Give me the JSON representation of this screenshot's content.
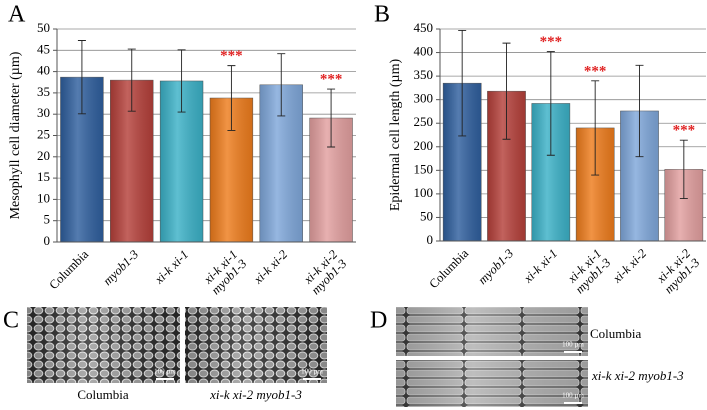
{
  "chart_data": [
    {
      "type": "bar",
      "label": "A",
      "ylabel": "Mesophyll cell diameter (µm)",
      "categories": [
        "Columbia",
        "myob1-3",
        "xi-k xi-1",
        "xi-k xi-1 myob1-3",
        "xi-k xi-2",
        "xi-k xi-2 myob1-3"
      ],
      "values": [
        38.7,
        38.0,
        37.8,
        33.8,
        36.9,
        29.1
      ],
      "errors": [
        8.6,
        7.3,
        7.3,
        7.6,
        7.3,
        6.8
      ],
      "significance_labels": [
        null,
        null,
        null,
        "***",
        null,
        "***"
      ],
      "colors": [
        "#2f5f9e",
        "#b5403a",
        "#3bb1c7",
        "#ee7c1c",
        "#7fa7da",
        "#e29f9f"
      ],
      "ylim": [
        0,
        50
      ],
      "yticks": [
        0,
        5,
        10,
        15,
        20,
        25,
        30,
        35,
        40,
        45,
        50
      ],
      "grid": true
    },
    {
      "type": "bar",
      "label": "B",
      "ylabel": "Epidermal cell length (µm)",
      "categories": [
        "Columbia",
        "myob1-3",
        "xi-k xi-1",
        "xi-k xi-1 myob1-3",
        "xi-k xi-2",
        "xi-k xi-2 myob1-3"
      ],
      "values": [
        335,
        318,
        292,
        240,
        276,
        152
      ],
      "errors": [
        112,
        102,
        110,
        100,
        97,
        62
      ],
      "significance_labels": [
        null,
        null,
        "***",
        "***",
        null,
        "***"
      ],
      "colors": [
        "#2f5f9e",
        "#b5403a",
        "#3bb1c7",
        "#ee7c1c",
        "#7fa7da",
        "#e29f9f"
      ],
      "ylim": [
        0,
        450
      ],
      "yticks": [
        0,
        50,
        100,
        150,
        200,
        250,
        300,
        350,
        400,
        450
      ],
      "grid": true
    }
  ],
  "micrographs": [
    {
      "label": "C",
      "images": [
        {
          "caption": "Columbia",
          "scale_bar": "100 µm"
        },
        {
          "caption": "xi-k xi-2 myob1-3",
          "scale_bar": "100 µm"
        }
      ]
    },
    {
      "label": "D",
      "images": [
        {
          "caption": "Columbia",
          "scale_bar": "100 µm"
        },
        {
          "caption": "xi-k xi-2 myob1-3",
          "scale_bar": "100 µm"
        }
      ]
    }
  ]
}
